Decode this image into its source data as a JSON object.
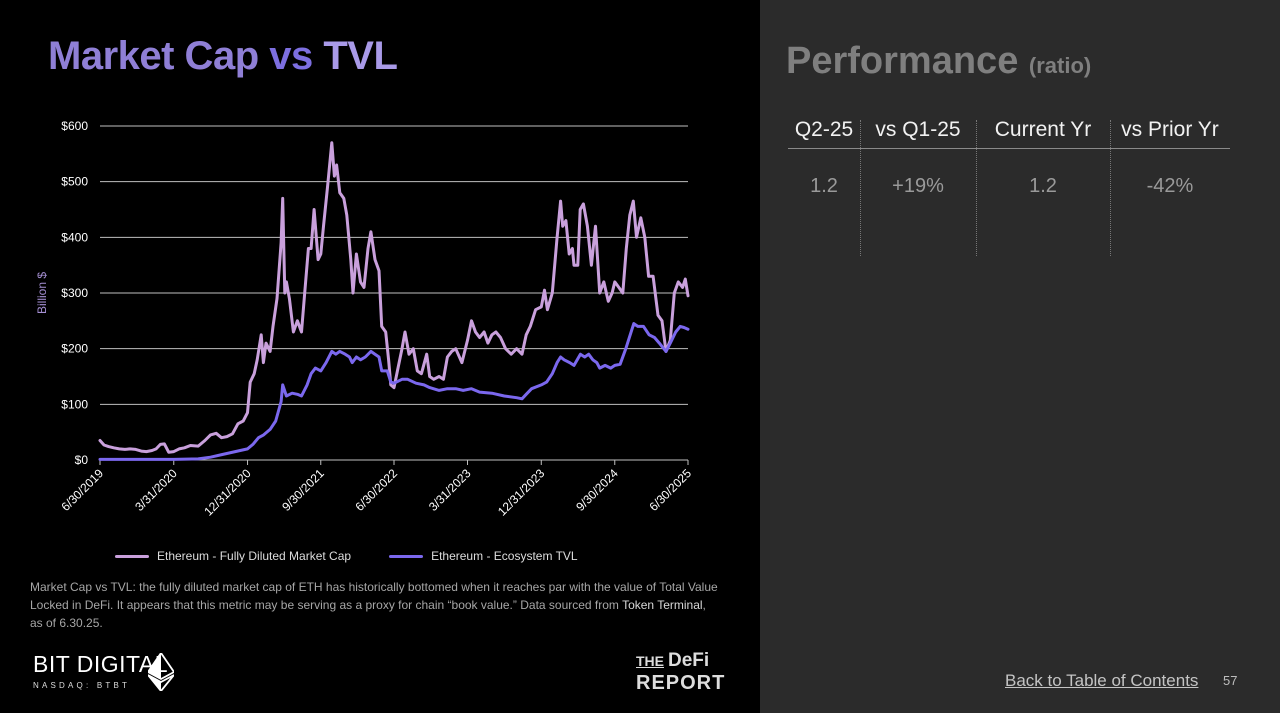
{
  "title": {
    "part1": "Market Cap",
    "part2": "vs",
    "part3": "TVL"
  },
  "chart_data": {
    "type": "line",
    "ylabel": "Billion $",
    "ylim": [
      0,
      600
    ],
    "yticks": [
      0,
      100,
      200,
      300,
      400,
      500,
      600
    ],
    "ytick_labels": [
      "$0",
      "$100",
      "$200",
      "$300",
      "$400",
      "$500",
      "$600"
    ],
    "xlim": [
      "2019-06-30",
      "2025-06-30"
    ],
    "xtick_labels": [
      "6/30/2019",
      "3/31/2020",
      "12/31/2020",
      "9/30/2021",
      "6/30/2022",
      "3/31/2023",
      "12/31/2023",
      "9/30/2024",
      "6/30/2025"
    ],
    "xtick_dates": [
      "2019-06-30",
      "2020-03-31",
      "2020-12-31",
      "2021-09-30",
      "2022-06-30",
      "2023-03-31",
      "2023-12-31",
      "2024-09-30",
      "2025-06-30"
    ],
    "grid": "horizontal",
    "legend": "bottom",
    "series": [
      {
        "name": "Ethereum - Fully Diluted Market Cap",
        "color": "#c9a0dc",
        "points": [
          [
            "2019-06-30",
            35
          ],
          [
            "2019-07-15",
            27
          ],
          [
            "2019-08-01",
            24
          ],
          [
            "2019-08-20",
            22
          ],
          [
            "2019-09-10",
            20
          ],
          [
            "2019-10-01",
            19
          ],
          [
            "2019-10-20",
            20
          ],
          [
            "2019-11-10",
            19
          ],
          [
            "2019-12-01",
            16
          ],
          [
            "2019-12-20",
            15
          ],
          [
            "2020-01-10",
            17
          ],
          [
            "2020-01-25",
            20
          ],
          [
            "2020-02-10",
            28
          ],
          [
            "2020-02-25",
            29
          ],
          [
            "2020-03-12",
            14
          ],
          [
            "2020-03-31",
            15
          ],
          [
            "2020-04-20",
            20
          ],
          [
            "2020-05-10",
            22
          ],
          [
            "2020-06-01",
            26
          ],
          [
            "2020-06-30",
            25
          ],
          [
            "2020-07-25",
            35
          ],
          [
            "2020-08-15",
            45
          ],
          [
            "2020-09-05",
            48
          ],
          [
            "2020-09-25",
            40
          ],
          [
            "2020-10-15",
            42
          ],
          [
            "2020-11-05",
            47
          ],
          [
            "2020-11-25",
            65
          ],
          [
            "2020-12-15",
            70
          ],
          [
            "2020-12-31",
            85
          ],
          [
            "2021-01-10",
            140
          ],
          [
            "2021-01-25",
            155
          ],
          [
            "2021-02-05",
            180
          ],
          [
            "2021-02-20",
            225
          ],
          [
            "2021-02-28",
            175
          ],
          [
            "2021-03-10",
            210
          ],
          [
            "2021-03-25",
            195
          ],
          [
            "2021-04-05",
            240
          ],
          [
            "2021-04-20",
            290
          ],
          [
            "2021-05-05",
            390
          ],
          [
            "2021-05-11",
            470
          ],
          [
            "2021-05-19",
            300
          ],
          [
            "2021-05-25",
            320
          ],
          [
            "2021-06-05",
            290
          ],
          [
            "2021-06-20",
            230
          ],
          [
            "2021-07-05",
            250
          ],
          [
            "2021-07-20",
            230
          ],
          [
            "2021-08-01",
            300
          ],
          [
            "2021-08-15",
            380
          ],
          [
            "2021-08-25",
            380
          ],
          [
            "2021-09-05",
            450
          ],
          [
            "2021-09-20",
            360
          ],
          [
            "2021-09-30",
            370
          ],
          [
            "2021-10-10",
            420
          ],
          [
            "2021-10-25",
            490
          ],
          [
            "2021-11-10",
            570
          ],
          [
            "2021-11-20",
            510
          ],
          [
            "2021-11-28",
            530
          ],
          [
            "2021-12-10",
            480
          ],
          [
            "2021-12-25",
            470
          ],
          [
            "2022-01-05",
            440
          ],
          [
            "2022-01-20",
            360
          ],
          [
            "2022-01-28",
            300
          ],
          [
            "2022-02-10",
            370
          ],
          [
            "2022-02-25",
            320
          ],
          [
            "2022-03-10",
            310
          ],
          [
            "2022-03-25",
            380
          ],
          [
            "2022-04-05",
            410
          ],
          [
            "2022-04-20",
            360
          ],
          [
            "2022-05-05",
            340
          ],
          [
            "2022-05-15",
            240
          ],
          [
            "2022-05-30",
            230
          ],
          [
            "2022-06-10",
            180
          ],
          [
            "2022-06-18",
            135
          ],
          [
            "2022-06-30",
            130
          ],
          [
            "2022-07-15",
            165
          ],
          [
            "2022-07-30",
            200
          ],
          [
            "2022-08-10",
            230
          ],
          [
            "2022-08-25",
            190
          ],
          [
            "2022-09-10",
            200
          ],
          [
            "2022-09-25",
            160
          ],
          [
            "2022-10-10",
            155
          ],
          [
            "2022-10-30",
            190
          ],
          [
            "2022-11-10",
            150
          ],
          [
            "2022-11-25",
            145
          ],
          [
            "2022-12-15",
            150
          ],
          [
            "2022-12-31",
            145
          ],
          [
            "2023-01-15",
            185
          ],
          [
            "2023-01-31",
            195
          ],
          [
            "2023-02-15",
            200
          ],
          [
            "2023-03-10",
            175
          ],
          [
            "2023-03-31",
            215
          ],
          [
            "2023-04-15",
            250
          ],
          [
            "2023-04-30",
            230
          ],
          [
            "2023-05-15",
            220
          ],
          [
            "2023-06-01",
            230
          ],
          [
            "2023-06-15",
            210
          ],
          [
            "2023-06-30",
            225
          ],
          [
            "2023-07-15",
            230
          ],
          [
            "2023-08-01",
            220
          ],
          [
            "2023-08-20",
            200
          ],
          [
            "2023-09-10",
            190
          ],
          [
            "2023-09-30",
            200
          ],
          [
            "2023-10-20",
            190
          ],
          [
            "2023-11-05",
            225
          ],
          [
            "2023-11-20",
            240
          ],
          [
            "2023-12-10",
            270
          ],
          [
            "2023-12-31",
            275
          ],
          [
            "2024-01-12",
            305
          ],
          [
            "2024-01-23",
            270
          ],
          [
            "2024-02-10",
            300
          ],
          [
            "2024-02-28",
            400
          ],
          [
            "2024-03-12",
            465
          ],
          [
            "2024-03-20",
            420
          ],
          [
            "2024-04-01",
            430
          ],
          [
            "2024-04-13",
            370
          ],
          [
            "2024-04-25",
            380
          ],
          [
            "2024-05-01",
            350
          ],
          [
            "2024-05-15",
            350
          ],
          [
            "2024-05-24",
            450
          ],
          [
            "2024-06-05",
            460
          ],
          [
            "2024-06-20",
            420
          ],
          [
            "2024-07-05",
            350
          ],
          [
            "2024-07-20",
            420
          ],
          [
            "2024-08-05",
            300
          ],
          [
            "2024-08-20",
            320
          ],
          [
            "2024-09-06",
            285
          ],
          [
            "2024-09-20",
            300
          ],
          [
            "2024-09-30",
            320
          ],
          [
            "2024-10-15",
            310
          ],
          [
            "2024-10-30",
            300
          ],
          [
            "2024-11-12",
            380
          ],
          [
            "2024-11-25",
            440
          ],
          [
            "2024-12-08",
            465
          ],
          [
            "2024-12-20",
            400
          ],
          [
            "2025-01-05",
            435
          ],
          [
            "2025-01-20",
            400
          ],
          [
            "2025-02-03",
            330
          ],
          [
            "2025-02-20",
            330
          ],
          [
            "2025-03-10",
            260
          ],
          [
            "2025-03-25",
            250
          ],
          [
            "2025-04-09",
            195
          ],
          [
            "2025-04-25",
            215
          ],
          [
            "2025-05-10",
            300
          ],
          [
            "2025-05-25",
            320
          ],
          [
            "2025-06-10",
            310
          ],
          [
            "2025-06-20",
            325
          ],
          [
            "2025-06-30",
            295
          ]
        ]
      },
      {
        "name": "Ethereum - Ecosystem TVL",
        "color": "#7b68ee",
        "points": [
          [
            "2019-06-30",
            1
          ],
          [
            "2019-09-30",
            1
          ],
          [
            "2019-12-31",
            1
          ],
          [
            "2020-03-31",
            1
          ],
          [
            "2020-06-30",
            2
          ],
          [
            "2020-08-15",
            5
          ],
          [
            "2020-09-30",
            10
          ],
          [
            "2020-11-15",
            15
          ],
          [
            "2020-12-31",
            20
          ],
          [
            "2021-01-20",
            28
          ],
          [
            "2021-02-10",
            40
          ],
          [
            "2021-03-01",
            45
          ],
          [
            "2021-03-25",
            55
          ],
          [
            "2021-04-15",
            70
          ],
          [
            "2021-05-05",
            105
          ],
          [
            "2021-05-11",
            135
          ],
          [
            "2021-05-25",
            115
          ],
          [
            "2021-06-15",
            120
          ],
          [
            "2021-07-05",
            118
          ],
          [
            "2021-07-20",
            115
          ],
          [
            "2021-08-10",
            135
          ],
          [
            "2021-08-25",
            155
          ],
          [
            "2021-09-10",
            165
          ],
          [
            "2021-09-30",
            160
          ],
          [
            "2021-10-20",
            175
          ],
          [
            "2021-11-10",
            195
          ],
          [
            "2021-11-25",
            190
          ],
          [
            "2021-12-10",
            195
          ],
          [
            "2021-12-30",
            190
          ],
          [
            "2022-01-15",
            185
          ],
          [
            "2022-01-25",
            175
          ],
          [
            "2022-02-10",
            185
          ],
          [
            "2022-02-25",
            180
          ],
          [
            "2022-03-15",
            185
          ],
          [
            "2022-04-05",
            195
          ],
          [
            "2022-04-20",
            190
          ],
          [
            "2022-05-05",
            185
          ],
          [
            "2022-05-15",
            160
          ],
          [
            "2022-06-05",
            160
          ],
          [
            "2022-06-18",
            140
          ],
          [
            "2022-06-30",
            138
          ],
          [
            "2022-07-30",
            145
          ],
          [
            "2022-08-20",
            145
          ],
          [
            "2022-09-20",
            138
          ],
          [
            "2022-10-20",
            135
          ],
          [
            "2022-11-10",
            130
          ],
          [
            "2022-12-15",
            125
          ],
          [
            "2023-01-15",
            128
          ],
          [
            "2023-02-15",
            128
          ],
          [
            "2023-03-15",
            125
          ],
          [
            "2023-04-15",
            128
          ],
          [
            "2023-05-15",
            122
          ],
          [
            "2023-06-30",
            120
          ],
          [
            "2023-08-15",
            115
          ],
          [
            "2023-09-30",
            112
          ],
          [
            "2023-10-20",
            110
          ],
          [
            "2023-11-05",
            118
          ],
          [
            "2023-11-25",
            128
          ],
          [
            "2023-12-31",
            135
          ],
          [
            "2024-01-20",
            140
          ],
          [
            "2024-02-10",
            155
          ],
          [
            "2024-02-28",
            175
          ],
          [
            "2024-03-12",
            185
          ],
          [
            "2024-03-25",
            180
          ],
          [
            "2024-04-15",
            175
          ],
          [
            "2024-05-01",
            170
          ],
          [
            "2024-05-25",
            190
          ],
          [
            "2024-06-10",
            185
          ],
          [
            "2024-06-25",
            190
          ],
          [
            "2024-07-10",
            180
          ],
          [
            "2024-07-25",
            175
          ],
          [
            "2024-08-05",
            165
          ],
          [
            "2024-08-25",
            170
          ],
          [
            "2024-09-15",
            165
          ],
          [
            "2024-09-30",
            170
          ],
          [
            "2024-10-20",
            172
          ],
          [
            "2024-11-10",
            200
          ],
          [
            "2024-11-30",
            230
          ],
          [
            "2024-12-10",
            245
          ],
          [
            "2024-12-25",
            240
          ],
          [
            "2025-01-15",
            240
          ],
          [
            "2025-02-05",
            225
          ],
          [
            "2025-02-25",
            220
          ],
          [
            "2025-03-15",
            210
          ],
          [
            "2025-04-09",
            195
          ],
          [
            "2025-04-25",
            210
          ],
          [
            "2025-05-15",
            230
          ],
          [
            "2025-06-01",
            240
          ],
          [
            "2025-06-15",
            238
          ],
          [
            "2025-06-30",
            235
          ]
        ]
      }
    ]
  },
  "legend": {
    "item1": "Ethereum - Fully Diluted Market Cap",
    "item2": "Ethereum - Ecosystem TVL"
  },
  "caption": {
    "text": "Market Cap vs TVL: the fully diluted market cap of ETH has historically bottomed when it reaches par with the value of Total Value Locked in DeFi. It appears that this metric may be serving as a proxy for chain “book value.” Data sourced from ",
    "source": "Token Terminal",
    "tail": ", as of 6.30.25."
  },
  "brand": {
    "bitdigital_name": "BIT DIGITAL",
    "bitdigital_sub": "NASDAQ: BTBT",
    "defi_line1_small": "THE",
    "defi_line1": "DeFi",
    "defi_line2": "REPORT"
  },
  "performance": {
    "title": "Performance",
    "unit": "(ratio)",
    "headers": [
      "Q2-25",
      "vs Q1-25",
      "Current Yr",
      "vs Prior Yr"
    ],
    "values": [
      "1.2",
      "+19%",
      "1.2",
      "-42%"
    ]
  },
  "footer": {
    "toc_link": "Back to Table of Contents",
    "page_number": "57"
  },
  "colors": {
    "market_cap_line": "#c9a0dc",
    "tvl_line": "#7b68ee",
    "right_panel_bg": "#2b2b2b"
  }
}
